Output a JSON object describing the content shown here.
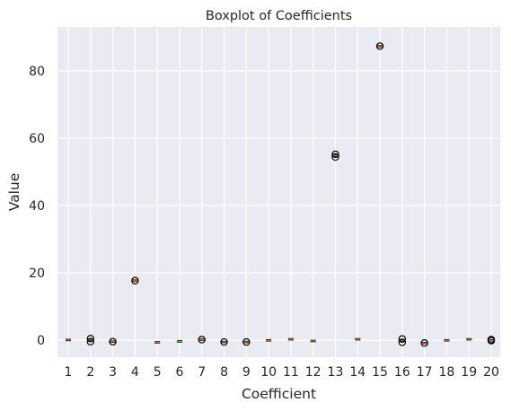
{
  "chart_data": {
    "type": "box",
    "title": "Boxplot of Coefficients",
    "xlabel": "Coefficient",
    "ylabel": "Value",
    "ylim": [
      -5,
      93
    ],
    "yticks": [
      0,
      20,
      40,
      60,
      80
    ],
    "grid": true,
    "categories": [
      "1",
      "2",
      "3",
      "4",
      "5",
      "6",
      "7",
      "8",
      "9",
      "10",
      "11",
      "12",
      "13",
      "14",
      "15",
      "16",
      "17",
      "18",
      "19",
      "20"
    ],
    "medians": [
      0.1,
      0.1,
      -0.4,
      17.7,
      -0.6,
      -0.3,
      0.2,
      -0.5,
      -0.5,
      0.0,
      0.3,
      -0.2,
      54.8,
      0.3,
      87.3,
      0.0,
      -0.8,
      0.0,
      0.3,
      0.0
    ],
    "outliers": [
      [],
      [
        0.5,
        -0.4
      ],
      [
        -0.4
      ],
      [
        17.7
      ],
      [],
      [],
      [
        0.2
      ],
      [
        -0.5
      ],
      [
        -0.5
      ],
      [],
      [],
      [],
      [
        55.2,
        54.4
      ],
      [],
      [
        87.3
      ],
      [
        0.4,
        -0.6
      ],
      [
        -0.8
      ],
      [],
      [],
      [
        0.2,
        -0.1
      ]
    ],
    "colors": {
      "background": "#eaeaf2",
      "grid": "#ffffff",
      "median": "#e07b39",
      "outlier": "#000000"
    }
  }
}
